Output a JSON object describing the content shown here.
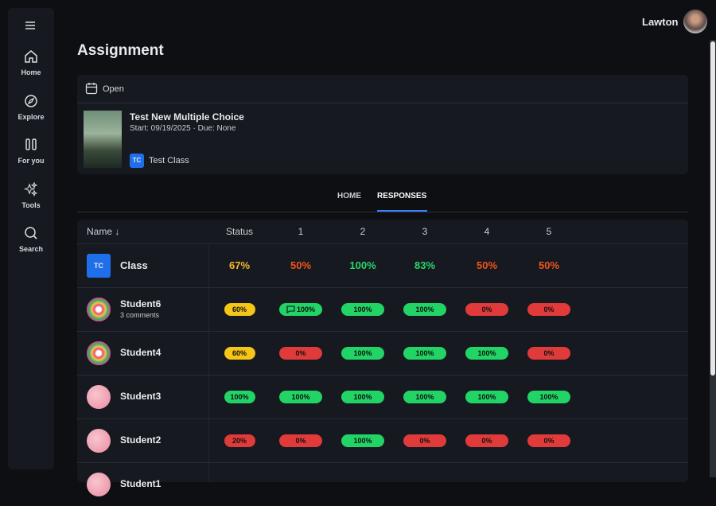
{
  "user": "Lawton",
  "nav": [
    "Home",
    "Explore",
    "For you",
    "Tools",
    "Search"
  ],
  "page_title": "Assignment",
  "assignment": {
    "status": "Open",
    "title": "Test New Multiple Choice",
    "dates": "Start: 09/19/2025 · Due: None",
    "class_badge": "TC",
    "class_name": "Test Class"
  },
  "tabs": [
    "HOME",
    "RESPONSES"
  ],
  "table": {
    "headers": [
      "Name ↓",
      "Status",
      "1",
      "2",
      "3",
      "4",
      "5"
    ],
    "class_row": {
      "badge": "TC",
      "name": "Class",
      "cells": [
        "67%",
        "50%",
        "100%",
        "83%",
        "50%",
        "50%"
      ]
    },
    "rows": [
      {
        "name": "Student6",
        "note": "3 comments",
        "cells": [
          "60%",
          "100%",
          "100%",
          "100%",
          "0%",
          "0%"
        ]
      },
      {
        "name": "Student4",
        "cells": [
          "60%",
          "0%",
          "100%",
          "100%",
          "100%",
          "0%"
        ]
      },
      {
        "name": "Student3",
        "cells": [
          "100%",
          "100%",
          "100%",
          "100%",
          "100%",
          "100%"
        ]
      },
      {
        "name": "Student2",
        "cells": [
          "20%",
          "0%",
          "100%",
          "0%",
          "0%",
          "0%"
        ]
      },
      {
        "name": "Student1",
        "cells": []
      }
    ]
  }
}
